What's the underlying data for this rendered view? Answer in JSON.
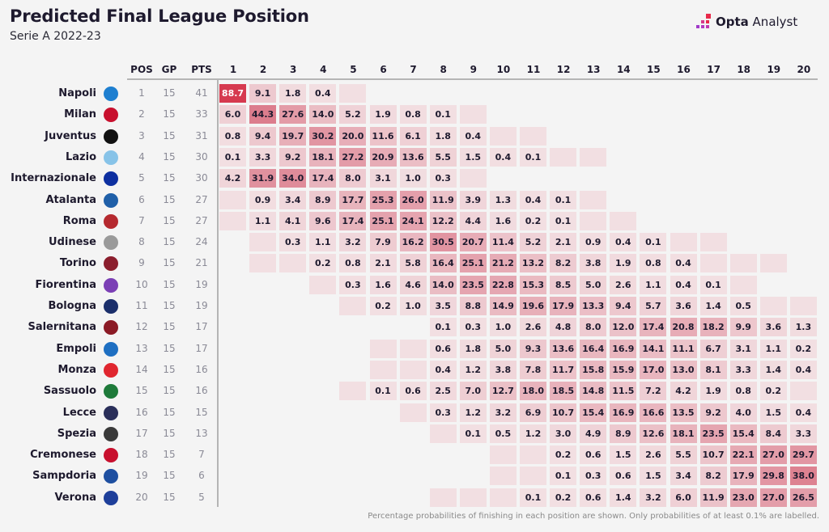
{
  "header": {
    "title": "Predicted Final League Position",
    "subtitle": "Serie A 2022-23",
    "brand_bold": "Opta",
    "brand_light": " Analyst"
  },
  "footnote": "Percentage probabilities of finishing in each position are shown. Only probabilities of at least 0.1% are labelled.",
  "colors": {
    "background": "#f4f4f4",
    "cell_low": "#f2dfe2",
    "cell_high": "#d63a4f",
    "text_dark": "#1e1a2e",
    "text_muted": "#8a8a96"
  },
  "chart_data": {
    "type": "heatmap",
    "title": "Predicted Final League Position",
    "subtitle": "Serie A 2022-23",
    "columns": [
      "POS",
      "GP",
      "PTS",
      "1",
      "2",
      "3",
      "4",
      "5",
      "6",
      "7",
      "8",
      "9",
      "10",
      "11",
      "12",
      "13",
      "14",
      "15",
      "16",
      "17",
      "18",
      "19",
      "20"
    ],
    "positions": [
      "1",
      "2",
      "3",
      "4",
      "5",
      "6",
      "7",
      "8",
      "9",
      "10",
      "11",
      "12",
      "13",
      "14",
      "15",
      "16",
      "17",
      "18",
      "19",
      "20"
    ],
    "note": "Values are percentage probabilities; '<' means a non-zero probability below 0.1% (shaded but unlabelled); null means no cell.",
    "rows": [
      {
        "team": "Napoli",
        "crest": "napoli-crest",
        "crest_color": "#1e7fd0",
        "pos": 1,
        "gp": 15,
        "pts": 41,
        "probs": [
          88.7,
          9.1,
          1.8,
          0.4,
          "<",
          null,
          null,
          null,
          null,
          null,
          null,
          null,
          null,
          null,
          null,
          null,
          null,
          null,
          null,
          null
        ]
      },
      {
        "team": "Milan",
        "crest": "milan-crest",
        "crest_color": "#c8102e",
        "pos": 2,
        "gp": 15,
        "pts": 33,
        "probs": [
          6.0,
          44.3,
          27.6,
          14.0,
          5.2,
          1.9,
          0.8,
          0.1,
          "<",
          null,
          null,
          null,
          null,
          null,
          null,
          null,
          null,
          null,
          null,
          null
        ]
      },
      {
        "team": "Juventus",
        "crest": "juventus-crest",
        "crest_color": "#111111",
        "pos": 3,
        "gp": 15,
        "pts": 31,
        "probs": [
          0.8,
          9.4,
          19.7,
          30.2,
          20.0,
          11.6,
          6.1,
          1.8,
          0.4,
          "<",
          "<",
          null,
          null,
          null,
          null,
          null,
          null,
          null,
          null,
          null
        ]
      },
      {
        "team": "Lazio",
        "crest": "lazio-crest",
        "crest_color": "#87c3e8",
        "pos": 4,
        "gp": 15,
        "pts": 30,
        "probs": [
          0.1,
          3.3,
          9.2,
          18.1,
          27.2,
          20.9,
          13.6,
          5.5,
          1.5,
          0.4,
          0.1,
          "<",
          "<",
          null,
          null,
          null,
          null,
          null,
          null,
          null
        ]
      },
      {
        "team": "Internazionale",
        "crest": "inter-crest",
        "crest_color": "#0d2fa0",
        "pos": 5,
        "gp": 15,
        "pts": 30,
        "probs": [
          4.2,
          31.9,
          34.0,
          17.4,
          8.0,
          3.1,
          1.0,
          0.3,
          "<",
          null,
          null,
          null,
          null,
          null,
          null,
          null,
          null,
          null,
          null,
          null
        ]
      },
      {
        "team": "Atalanta",
        "crest": "atalanta-crest",
        "crest_color": "#1f5fa8",
        "pos": 6,
        "gp": 15,
        "pts": 27,
        "probs": [
          "<",
          0.9,
          3.4,
          8.9,
          17.7,
          25.3,
          26.0,
          11.9,
          3.9,
          1.3,
          0.4,
          0.1,
          "<",
          null,
          null,
          null,
          null,
          null,
          null,
          null
        ]
      },
      {
        "team": "Roma",
        "crest": "roma-crest",
        "crest_color": "#b5292f",
        "pos": 7,
        "gp": 15,
        "pts": 27,
        "probs": [
          "<",
          1.1,
          4.1,
          9.6,
          17.4,
          25.1,
          24.1,
          12.2,
          4.4,
          1.6,
          0.2,
          0.1,
          "<",
          "<",
          null,
          null,
          null,
          null,
          null,
          null
        ]
      },
      {
        "team": "Udinese",
        "crest": "udinese-crest",
        "crest_color": "#9a9a9a",
        "pos": 8,
        "gp": 15,
        "pts": 24,
        "probs": [
          null,
          "<",
          0.3,
          1.1,
          3.2,
          7.9,
          16.2,
          30.5,
          20.7,
          11.4,
          5.2,
          2.1,
          0.9,
          0.4,
          0.1,
          "<",
          "<",
          null,
          null,
          null
        ]
      },
      {
        "team": "Torino",
        "crest": "torino-crest",
        "crest_color": "#8b1e2d",
        "pos": 9,
        "gp": 15,
        "pts": 21,
        "probs": [
          null,
          "<",
          "<",
          0.2,
          0.8,
          2.1,
          5.8,
          16.4,
          25.1,
          21.2,
          13.2,
          8.2,
          3.8,
          1.9,
          0.8,
          0.4,
          "<",
          "<",
          "<",
          null
        ]
      },
      {
        "team": "Fiorentina",
        "crest": "fiorentina-crest",
        "crest_color": "#7b3fb5",
        "pos": 10,
        "gp": 15,
        "pts": 19,
        "probs": [
          null,
          null,
          null,
          "<",
          0.3,
          1.6,
          4.6,
          14.0,
          23.5,
          22.8,
          15.3,
          8.5,
          5.0,
          2.6,
          1.1,
          0.4,
          0.1,
          "<",
          null,
          null
        ]
      },
      {
        "team": "Bologna",
        "crest": "bologna-crest",
        "crest_color": "#1b2f6b",
        "pos": 11,
        "gp": 15,
        "pts": 19,
        "probs": [
          null,
          null,
          null,
          null,
          "<",
          0.2,
          1.0,
          3.5,
          8.8,
          14.9,
          19.6,
          17.9,
          13.3,
          9.4,
          5.7,
          3.6,
          1.4,
          0.5,
          "<",
          "<"
        ]
      },
      {
        "team": "Salernitana",
        "crest": "salernitana-crest",
        "crest_color": "#8b1a25",
        "pos": 12,
        "gp": 15,
        "pts": 17,
        "probs": [
          null,
          null,
          null,
          null,
          null,
          null,
          null,
          0.1,
          0.3,
          1.0,
          2.6,
          4.8,
          8.0,
          12.0,
          17.4,
          20.8,
          18.2,
          9.9,
          3.6,
          1.3
        ]
      },
      {
        "team": "Empoli",
        "crest": "empoli-crest",
        "crest_color": "#1e6fc2",
        "pos": 13,
        "gp": 15,
        "pts": 17,
        "probs": [
          null,
          null,
          null,
          null,
          null,
          "<",
          "<",
          0.6,
          1.8,
          5.0,
          9.3,
          13.6,
          16.4,
          16.9,
          14.1,
          11.1,
          6.7,
          3.1,
          1.1,
          0.2
        ]
      },
      {
        "team": "Monza",
        "crest": "monza-crest",
        "crest_color": "#e0262f",
        "pos": 14,
        "gp": 15,
        "pts": 16,
        "probs": [
          null,
          null,
          null,
          null,
          null,
          "<",
          "<",
          0.4,
          1.2,
          3.8,
          7.8,
          11.7,
          15.8,
          15.9,
          17.0,
          13.0,
          8.1,
          3.3,
          1.4,
          0.4
        ]
      },
      {
        "team": "Sassuolo",
        "crest": "sassuolo-crest",
        "crest_color": "#1e7a3a",
        "pos": 15,
        "gp": 15,
        "pts": 16,
        "probs": [
          null,
          null,
          null,
          null,
          "<",
          0.1,
          0.6,
          2.5,
          7.0,
          12.7,
          18.0,
          18.5,
          14.8,
          11.5,
          7.2,
          4.2,
          1.9,
          0.8,
          0.2,
          "<"
        ]
      },
      {
        "team": "Lecce",
        "crest": "lecce-crest",
        "crest_color": "#2a2f5a",
        "pos": 16,
        "gp": 15,
        "pts": 15,
        "probs": [
          null,
          null,
          null,
          null,
          null,
          null,
          "<",
          0.3,
          1.2,
          3.2,
          6.9,
          10.7,
          15.4,
          16.9,
          16.6,
          13.5,
          9.2,
          4.0,
          1.5,
          0.4
        ]
      },
      {
        "team": "Spezia",
        "crest": "spezia-crest",
        "crest_color": "#3a3a3a",
        "pos": 17,
        "gp": 15,
        "pts": 13,
        "probs": [
          null,
          null,
          null,
          null,
          null,
          null,
          null,
          "<",
          0.1,
          0.5,
          1.2,
          3.0,
          4.9,
          8.9,
          12.6,
          18.1,
          23.5,
          15.4,
          8.4,
          3.3
        ]
      },
      {
        "team": "Cremonese",
        "crest": "cremonese-crest",
        "crest_color": "#c8102e",
        "pos": 18,
        "gp": 15,
        "pts": 7,
        "probs": [
          null,
          null,
          null,
          null,
          null,
          null,
          null,
          null,
          null,
          "<",
          "<",
          0.2,
          0.6,
          1.5,
          2.6,
          5.5,
          10.7,
          22.1,
          27.0,
          29.7
        ]
      },
      {
        "team": "Sampdoria",
        "crest": "sampdoria-crest",
        "crest_color": "#1e4fa0",
        "pos": 19,
        "gp": 15,
        "pts": 6,
        "probs": [
          null,
          null,
          null,
          null,
          null,
          null,
          null,
          null,
          null,
          "<",
          "<",
          0.1,
          0.3,
          0.6,
          1.5,
          3.4,
          8.2,
          17.9,
          29.8,
          38.0
        ]
      },
      {
        "team": "Verona",
        "crest": "verona-crest",
        "crest_color": "#1e3f9a",
        "pos": 20,
        "gp": 15,
        "pts": 5,
        "probs": [
          null,
          null,
          null,
          null,
          null,
          null,
          null,
          "<",
          "<",
          "<",
          0.1,
          0.2,
          0.6,
          1.4,
          3.2,
          6.0,
          11.9,
          23.0,
          27.0,
          26.5
        ]
      }
    ]
  }
}
